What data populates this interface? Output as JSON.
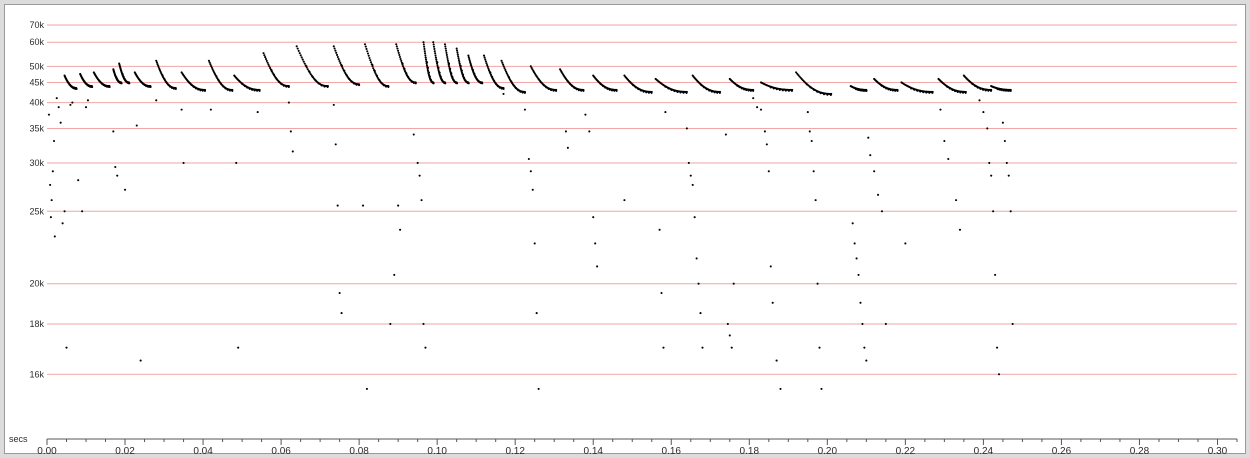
{
  "chart_data": {
    "type": "scatter",
    "title": "",
    "xlabel": "secs",
    "ylabel": "",
    "xlim": [
      0,
      0.305
    ],
    "y_scale": "reciprocal",
    "ylim": [
      14000,
      80000
    ],
    "grid": "horizontal",
    "gridline_color": "#f2a6a6",
    "point_color": "#000000",
    "x_ticks": [
      0.0,
      0.02,
      0.04,
      0.06,
      0.08,
      0.1,
      0.12,
      0.14,
      0.16,
      0.18,
      0.2,
      0.22,
      0.24,
      0.26,
      0.28,
      0.3
    ],
    "x_tick_labels": [
      "0.00",
      "0.02",
      "0.04",
      "0.06",
      "0.08",
      "0.10",
      "0.12",
      "0.14",
      "0.16",
      "0.18",
      "0.20",
      "0.22",
      "0.24",
      "0.26",
      "0.28",
      "0.30"
    ],
    "y_ticks": [
      16000,
      18000,
      20000,
      25000,
      30000,
      35000,
      40000,
      45000,
      50000,
      60000,
      70000
    ],
    "y_tick_labels": [
      "16k",
      "18k",
      "20k",
      "25k",
      "30k",
      "35k",
      "40k",
      "45k",
      "50k",
      "60k",
      "70k"
    ],
    "calls": [
      {
        "start": 0.0045,
        "end": 0.0075,
        "peak": 47000,
        "base": 43500
      },
      {
        "start": 0.0085,
        "end": 0.0115,
        "peak": 47500,
        "base": 44000
      },
      {
        "start": 0.012,
        "end": 0.016,
        "peak": 48000,
        "base": 44000
      },
      {
        "start": 0.017,
        "end": 0.019,
        "peak": 49000,
        "base": 45000
      },
      {
        "start": 0.0185,
        "end": 0.021,
        "peak": 51000,
        "base": 45000
      },
      {
        "start": 0.0225,
        "end": 0.0265,
        "peak": 48000,
        "base": 44000
      },
      {
        "start": 0.028,
        "end": 0.033,
        "peak": 52000,
        "base": 43500
      },
      {
        "start": 0.0345,
        "end": 0.0405,
        "peak": 48000,
        "base": 43000
      },
      {
        "start": 0.0415,
        "end": 0.0475,
        "peak": 52000,
        "base": 43000
      },
      {
        "start": 0.048,
        "end": 0.0545,
        "peak": 47000,
        "base": 43000
      },
      {
        "start": 0.0555,
        "end": 0.062,
        "peak": 55000,
        "base": 44000
      },
      {
        "start": 0.064,
        "end": 0.072,
        "peak": 58000,
        "base": 44000
      },
      {
        "start": 0.0735,
        "end": 0.08,
        "peak": 58000,
        "base": 44500
      },
      {
        "start": 0.0815,
        "end": 0.0875,
        "peak": 59000,
        "base": 44000
      },
      {
        "start": 0.0895,
        "end": 0.0945,
        "peak": 59000,
        "base": 45000
      },
      {
        "start": 0.0965,
        "end": 0.099,
        "peak": 60000,
        "base": 45000
      },
      {
        "start": 0.099,
        "end": 0.102,
        "peak": 60000,
        "base": 45000
      },
      {
        "start": 0.102,
        "end": 0.105,
        "peak": 59000,
        "base": 45000
      },
      {
        "start": 0.105,
        "end": 0.108,
        "peak": 57000,
        "base": 45000
      },
      {
        "start": 0.108,
        "end": 0.1115,
        "peak": 54000,
        "base": 45000
      },
      {
        "start": 0.112,
        "end": 0.117,
        "peak": 54000,
        "base": 43500
      },
      {
        "start": 0.1165,
        "end": 0.1225,
        "peak": 52000,
        "base": 42500
      },
      {
        "start": 0.124,
        "end": 0.1305,
        "peak": 50000,
        "base": 43000
      },
      {
        "start": 0.1315,
        "end": 0.1375,
        "peak": 49000,
        "base": 43000
      },
      {
        "start": 0.14,
        "end": 0.146,
        "peak": 47000,
        "base": 43000
      },
      {
        "start": 0.148,
        "end": 0.155,
        "peak": 47000,
        "base": 42500
      },
      {
        "start": 0.156,
        "end": 0.164,
        "peak": 46000,
        "base": 42500
      },
      {
        "start": 0.1655,
        "end": 0.1725,
        "peak": 47000,
        "base": 42500
      },
      {
        "start": 0.175,
        "end": 0.181,
        "peak": 46000,
        "base": 43000
      },
      {
        "start": 0.183,
        "end": 0.191,
        "peak": 45000,
        "base": 43000
      },
      {
        "start": 0.192,
        "end": 0.201,
        "peak": 48000,
        "base": 42000
      },
      {
        "start": 0.206,
        "end": 0.21,
        "peak": 44000,
        "base": 43000
      },
      {
        "start": 0.212,
        "end": 0.218,
        "peak": 46000,
        "base": 43000
      },
      {
        "start": 0.219,
        "end": 0.227,
        "peak": 45000,
        "base": 42500
      },
      {
        "start": 0.2285,
        "end": 0.2355,
        "peak": 46000,
        "base": 42500
      },
      {
        "start": 0.235,
        "end": 0.242,
        "peak": 47000,
        "base": 43000
      },
      {
        "start": 0.242,
        "end": 0.247,
        "peak": 44000,
        "base": 43000
      }
    ],
    "scatter_points": [
      [
        0.0005,
        37500
      ],
      [
        0.0008,
        27500
      ],
      [
        0.001,
        24500
      ],
      [
        0.0012,
        26000
      ],
      [
        0.0015,
        29000
      ],
      [
        0.0018,
        33000
      ],
      [
        0.002,
        23000
      ],
      [
        0.0025,
        41000
      ],
      [
        0.003,
        39000
      ],
      [
        0.0035,
        36000
      ],
      [
        0.004,
        24000
      ],
      [
        0.0045,
        25000
      ],
      [
        0.005,
        17000
      ],
      [
        0.006,
        39500
      ],
      [
        0.0065,
        40000
      ],
      [
        0.008,
        28000
      ],
      [
        0.009,
        25000
      ],
      [
        0.01,
        39000
      ],
      [
        0.0105,
        40500
      ],
      [
        0.017,
        34500
      ],
      [
        0.0175,
        29500
      ],
      [
        0.018,
        28500
      ],
      [
        0.02,
        27000
      ],
      [
        0.023,
        35500
      ],
      [
        0.024,
        16500
      ],
      [
        0.028,
        40500
      ],
      [
        0.0345,
        38500
      ],
      [
        0.035,
        30000
      ],
      [
        0.042,
        38500
      ],
      [
        0.0485,
        30000
      ],
      [
        0.049,
        17000
      ],
      [
        0.054,
        38000
      ],
      [
        0.062,
        40000
      ],
      [
        0.0625,
        34500
      ],
      [
        0.063,
        31500
      ],
      [
        0.0735,
        39500
      ],
      [
        0.074,
        32500
      ],
      [
        0.0745,
        25500
      ],
      [
        0.075,
        19500
      ],
      [
        0.0755,
        18500
      ],
      [
        0.081,
        25500
      ],
      [
        0.082,
        15500
      ],
      [
        0.088,
        18000
      ],
      [
        0.089,
        20500
      ],
      [
        0.09,
        25500
      ],
      [
        0.0905,
        23500
      ],
      [
        0.094,
        34000
      ],
      [
        0.095,
        30000
      ],
      [
        0.0955,
        28500
      ],
      [
        0.096,
        26000
      ],
      [
        0.0965,
        18000
      ],
      [
        0.097,
        17000
      ],
      [
        0.117,
        42000
      ],
      [
        0.1225,
        38500
      ],
      [
        0.1235,
        30500
      ],
      [
        0.124,
        29000
      ],
      [
        0.1245,
        27000
      ],
      [
        0.125,
        22500
      ],
      [
        0.1255,
        18500
      ],
      [
        0.126,
        15500
      ],
      [
        0.133,
        34500
      ],
      [
        0.1335,
        32000
      ],
      [
        0.138,
        37500
      ],
      [
        0.139,
        34500
      ],
      [
        0.14,
        24500
      ],
      [
        0.1405,
        22500
      ],
      [
        0.141,
        21000
      ],
      [
        0.148,
        26000
      ],
      [
        0.157,
        23500
      ],
      [
        0.1575,
        19500
      ],
      [
        0.158,
        17000
      ],
      [
        0.1585,
        38000
      ],
      [
        0.164,
        35000
      ],
      [
        0.1645,
        30000
      ],
      [
        0.165,
        28500
      ],
      [
        0.1655,
        27500
      ],
      [
        0.166,
        24500
      ],
      [
        0.1665,
        21500
      ],
      [
        0.167,
        20000
      ],
      [
        0.1675,
        18500
      ],
      [
        0.168,
        17000
      ],
      [
        0.174,
        34000
      ],
      [
        0.1745,
        18000
      ],
      [
        0.175,
        17500
      ],
      [
        0.1755,
        17000
      ],
      [
        0.176,
        20000
      ],
      [
        0.181,
        41000
      ],
      [
        0.182,
        39000
      ],
      [
        0.183,
        38500
      ],
      [
        0.184,
        34500
      ],
      [
        0.1845,
        32500
      ],
      [
        0.185,
        29000
      ],
      [
        0.1855,
        21000
      ],
      [
        0.186,
        19000
      ],
      [
        0.187,
        16500
      ],
      [
        0.188,
        15500
      ],
      [
        0.195,
        38000
      ],
      [
        0.1955,
        34500
      ],
      [
        0.196,
        33000
      ],
      [
        0.1965,
        29000
      ],
      [
        0.197,
        26000
      ],
      [
        0.1975,
        20000
      ],
      [
        0.198,
        17000
      ],
      [
        0.1985,
        15500
      ],
      [
        0.2065,
        24000
      ],
      [
        0.207,
        22500
      ],
      [
        0.2075,
        21500
      ],
      [
        0.208,
        20500
      ],
      [
        0.2085,
        19000
      ],
      [
        0.209,
        18000
      ],
      [
        0.2095,
        17000
      ],
      [
        0.21,
        16500
      ],
      [
        0.2105,
        33500
      ],
      [
        0.211,
        31000
      ],
      [
        0.212,
        29000
      ],
      [
        0.213,
        26500
      ],
      [
        0.214,
        25000
      ],
      [
        0.215,
        18000
      ],
      [
        0.22,
        22500
      ],
      [
        0.229,
        38500
      ],
      [
        0.23,
        33000
      ],
      [
        0.231,
        30500
      ],
      [
        0.233,
        26000
      ],
      [
        0.234,
        23500
      ],
      [
        0.239,
        40500
      ],
      [
        0.24,
        38000
      ],
      [
        0.241,
        35000
      ],
      [
        0.2415,
        30000
      ],
      [
        0.242,
        28500
      ],
      [
        0.2425,
        25000
      ],
      [
        0.243,
        20500
      ],
      [
        0.2435,
        17000
      ],
      [
        0.244,
        16000
      ],
      [
        0.245,
        36000
      ],
      [
        0.2455,
        33000
      ],
      [
        0.246,
        30000
      ],
      [
        0.2465,
        28500
      ],
      [
        0.247,
        25000
      ],
      [
        0.2475,
        18000
      ]
    ]
  }
}
